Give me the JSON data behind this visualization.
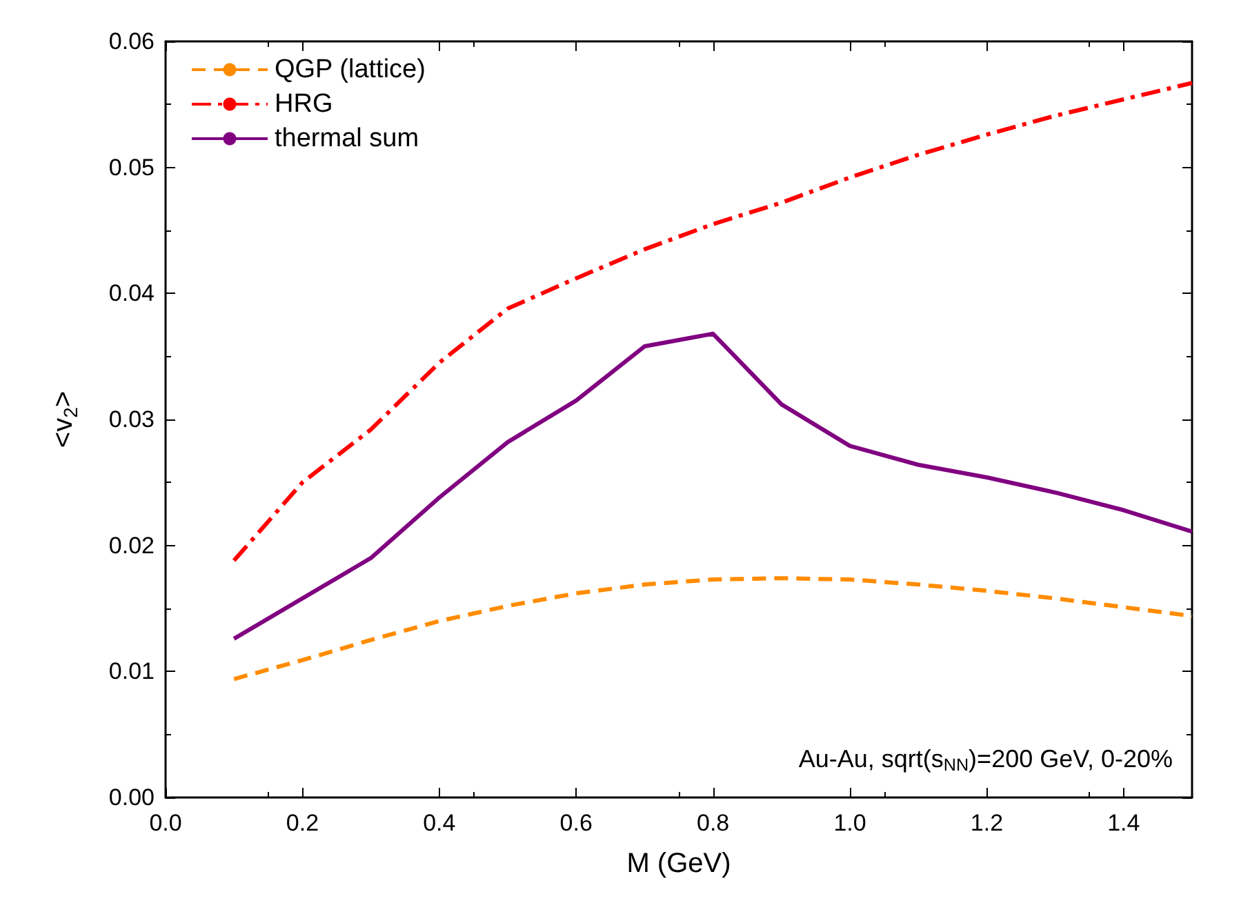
{
  "chart_data": {
    "type": "line",
    "xlabel": "M (GeV)",
    "ylabel": "<v$_{2}$>",
    "x": [
      0.1,
      0.2,
      0.3,
      0.4,
      0.5,
      0.6,
      0.7,
      0.8,
      0.9,
      1.0,
      1.1,
      1.2,
      1.3,
      1.4,
      1.5
    ],
    "series": [
      {
        "name": "QGP (lattice)",
        "color": "#ff8c00",
        "line_style": "dashed",
        "values": [
          0.0094,
          0.0109,
          0.0125,
          0.014,
          0.0152,
          0.0162,
          0.0169,
          0.0173,
          0.0174,
          0.0173,
          0.0169,
          0.0164,
          0.0158,
          0.0151,
          0.0144
        ]
      },
      {
        "name": "HRG",
        "color": "#ff0000",
        "line_style": "dashdot",
        "values": [
          0.0188,
          0.025,
          0.0292,
          0.0345,
          0.0388,
          0.0412,
          0.0435,
          0.0455,
          0.0472,
          0.0492,
          0.051,
          0.0526,
          0.0541,
          0.0554,
          0.0567
        ]
      },
      {
        "name": "thermal sum",
        "color": "#800080",
        "line_style": "solid",
        "values": [
          0.0126,
          0.0158,
          0.019,
          0.0238,
          0.0282,
          0.0315,
          0.0358,
          0.0368,
          0.0312,
          0.0279,
          0.0264,
          0.0254,
          0.0242,
          0.0228,
          0.0211
        ]
      }
    ],
    "xlim": [
      0,
      1.5
    ],
    "xticks": [
      {
        "value": 0,
        "label": "0.0"
      },
      0.2,
      0.4,
      0.6,
      0.8,
      {
        "value": 1,
        "label": "1.0"
      },
      1.2,
      1.4
    ],
    "ylim": [
      0,
      0.06
    ],
    "yticks": [
      {
        "value": 0,
        "label": "0.00"
      },
      0.01,
      0.02,
      0.03,
      0.04,
      0.05,
      0.06
    ],
    "annotations": [
      "Au-Au, sqrt(s$_{NN}$)=200 GeV, 0-20%"
    ],
    "legend": "top left",
    "grid": false,
    "marker": "none"
  }
}
